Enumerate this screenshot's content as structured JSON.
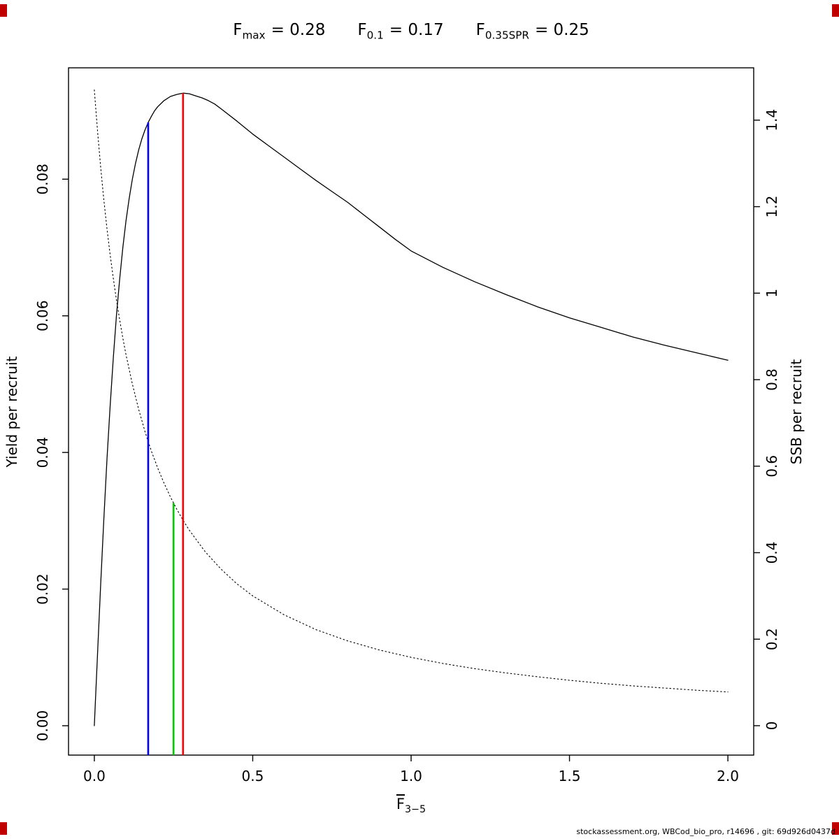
{
  "title": {
    "items": [
      {
        "main": "F",
        "sub": "max",
        "eq": "= 0.28"
      },
      {
        "main": "F",
        "sub": "0.1",
        "eq": "= 0.17"
      },
      {
        "main": "F",
        "sub": "0.35SPR",
        "eq": "= 0.25"
      }
    ]
  },
  "footer": "stockassessment.org, WBCod_bio_pro, r14696 , git: 69d926d0437d",
  "corner_marker_color": "#c00000",
  "chart_data": {
    "type": "line",
    "title": "Fmax = 0.28   F0.1 = 0.17   F0.35SPR = 0.25",
    "xlabel": {
      "main": "F",
      "sub": "3−5"
    },
    "xlim": [
      -0.0815,
      2.0815
    ],
    "x_ticks": [
      0.0,
      0.5,
      1.0,
      1.5,
      2.0
    ],
    "x_tick_labels": [
      "0.0",
      "0.5",
      "1.0",
      "1.5",
      "2.0"
    ],
    "grid": false,
    "legend": "none",
    "left_axis": {
      "label": "Yield per recruit",
      "lim": [
        -0.0043,
        0.0963
      ],
      "ticks": [
        0.0,
        0.02,
        0.04,
        0.06,
        0.08
      ],
      "tick_labels": [
        "0.00",
        "0.02",
        "0.04",
        "0.06",
        "0.08"
      ]
    },
    "right_axis": {
      "label": "SSB per recruit",
      "lim": [
        -0.068,
        1.521
      ],
      "ticks": [
        0,
        0.2,
        0.4,
        0.6,
        0.8,
        1,
        1.2,
        1.4
      ],
      "tick_labels": [
        "0",
        "0.2",
        "0.4",
        "0.6",
        "0.8",
        "1",
        "1.2",
        "1.4"
      ]
    },
    "series": [
      {
        "name": "yield-per-recruit",
        "axis": "left",
        "style": "solid",
        "color": "#000000",
        "points": [
          [
            0,
            0
          ],
          [
            0.01,
            0.0105
          ],
          [
            0.02,
            0.0207
          ],
          [
            0.03,
            0.0302
          ],
          [
            0.04,
            0.039
          ],
          [
            0.05,
            0.0469
          ],
          [
            0.06,
            0.0539
          ],
          [
            0.07,
            0.0601
          ],
          [
            0.08,
            0.0654
          ],
          [
            0.09,
            0.07
          ],
          [
            0.1,
            0.0739
          ],
          [
            0.11,
            0.0772
          ],
          [
            0.12,
            0.08
          ],
          [
            0.13,
            0.0823
          ],
          [
            0.14,
            0.0843
          ],
          [
            0.15,
            0.0859
          ],
          [
            0.16,
            0.0872
          ],
          [
            0.17,
            0.0883
          ],
          [
            0.18,
            0.0892
          ],
          [
            0.19,
            0.09
          ],
          [
            0.2,
            0.0906
          ],
          [
            0.22,
            0.0915
          ],
          [
            0.24,
            0.0921
          ],
          [
            0.26,
            0.0924
          ],
          [
            0.28,
            0.0926
          ],
          [
            0.3,
            0.0925
          ],
          [
            0.32,
            0.0922
          ],
          [
            0.34,
            0.0919
          ],
          [
            0.36,
            0.0915
          ],
          [
            0.38,
            0.091
          ],
          [
            0.4,
            0.0903
          ],
          [
            0.45,
            0.0885
          ],
          [
            0.5,
            0.0866
          ],
          [
            0.55,
            0.0849
          ],
          [
            0.6,
            0.0832
          ],
          [
            0.65,
            0.0815
          ],
          [
            0.7,
            0.0798
          ],
          [
            0.75,
            0.0782
          ],
          [
            0.8,
            0.0766
          ],
          [
            0.85,
            0.0748
          ],
          [
            0.9,
            0.073
          ],
          [
            0.95,
            0.0712
          ],
          [
            1,
            0.0695
          ],
          [
            1.1,
            0.0671
          ],
          [
            1.2,
            0.065
          ],
          [
            1.3,
            0.0631
          ],
          [
            1.4,
            0.0613
          ],
          [
            1.5,
            0.0597
          ],
          [
            1.6,
            0.0583
          ],
          [
            1.7,
            0.0569
          ],
          [
            1.8,
            0.0557
          ],
          [
            1.9,
            0.0546
          ],
          [
            2,
            0.0535
          ]
        ]
      },
      {
        "name": "ssb-per-recruit",
        "axis": "right",
        "style": "dotted",
        "color": "#000000",
        "points": [
          [
            0,
            1.47
          ],
          [
            0.01,
            1.375
          ],
          [
            0.02,
            1.291
          ],
          [
            0.03,
            1.216
          ],
          [
            0.04,
            1.149
          ],
          [
            0.05,
            1.088
          ],
          [
            0.06,
            1.034
          ],
          [
            0.07,
            0.984
          ],
          [
            0.08,
            0.938
          ],
          [
            0.09,
            0.896
          ],
          [
            0.1,
            0.858
          ],
          [
            0.12,
            0.79
          ],
          [
            0.14,
            0.731
          ],
          [
            0.16,
            0.68
          ],
          [
            0.17,
            0.657
          ],
          [
            0.18,
            0.635
          ],
          [
            0.2,
            0.596
          ],
          [
            0.22,
            0.561
          ],
          [
            0.24,
            0.529
          ],
          [
            0.25,
            0.515
          ],
          [
            0.26,
            0.501
          ],
          [
            0.28,
            0.475
          ],
          [
            0.3,
            0.452
          ],
          [
            0.35,
            0.402
          ],
          [
            0.4,
            0.362
          ],
          [
            0.45,
            0.328
          ],
          [
            0.5,
            0.3
          ],
          [
            0.6,
            0.256
          ],
          [
            0.7,
            0.222
          ],
          [
            0.8,
            0.196
          ],
          [
            0.9,
            0.175
          ],
          [
            1,
            0.158
          ],
          [
            1.1,
            0.144
          ],
          [
            1.2,
            0.132
          ],
          [
            1.3,
            0.122
          ],
          [
            1.4,
            0.113
          ],
          [
            1.5,
            0.105
          ],
          [
            1.6,
            0.098
          ],
          [
            1.7,
            0.092
          ],
          [
            1.8,
            0.087
          ],
          [
            1.9,
            0.082
          ],
          [
            2,
            0.078
          ]
        ]
      }
    ],
    "ref_lines": [
      {
        "name": "f0-1",
        "label": "F0.1 = 0.17",
        "x": 0.17,
        "top": 0.0883,
        "axis": "left",
        "color": "#0000FF"
      },
      {
        "name": "f0-35spr",
        "label": "F0.35SPR = 0.25",
        "x": 0.25,
        "top": 0.515,
        "axis": "right",
        "color": "#00CC00"
      },
      {
        "name": "fmax",
        "label": "Fmax = 0.28",
        "x": 0.28,
        "top": 0.0926,
        "axis": "left",
        "color": "#FF0000"
      }
    ]
  }
}
